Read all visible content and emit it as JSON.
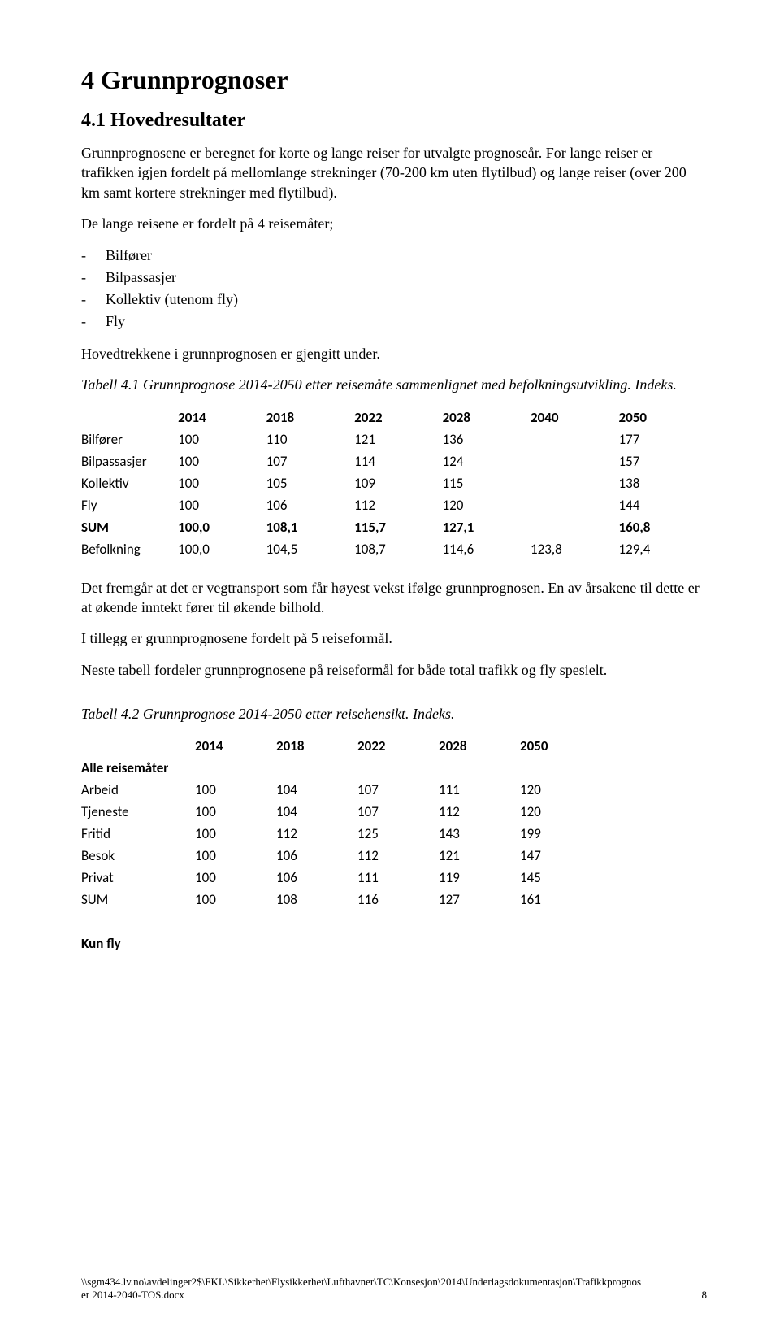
{
  "heading": "4  Grunnprognoser",
  "subheading": "4.1  Hovedresultater",
  "para1": "Grunnprognosene er beregnet for korte og lange reiser for utvalgte prognoseår. For lange reiser er trafikken igjen fordelt på mellomlange strekninger (70-200 km uten flytilbud) og lange reiser (over 200 km samt kortere strekninger med flytilbud).",
  "para2": "De lange reisene er fordelt på 4 reisemåter;",
  "list1": [
    "Bilfører",
    "Bilpassasjer",
    "Kollektiv (utenom fly)",
    "Fly"
  ],
  "para3": "Hovedtrekkene i grunnprognosen er gjengitt under.",
  "caption1": "Tabell 4.1 Grunnprognose 2014-2050 etter reisemåte sammenlignet med befolkningsutvikling. Indeks.",
  "table1": {
    "years": [
      "2014",
      "2018",
      "2022",
      "2028",
      "2040",
      "2050"
    ],
    "rows": [
      {
        "label": "Bilfører",
        "cells": [
          "100",
          "110",
          "121",
          "136",
          "",
          "177"
        ],
        "bold": false
      },
      {
        "label": "Bilpassasjer",
        "cells": [
          "100",
          "107",
          "114",
          "124",
          "",
          "157"
        ],
        "bold": false
      },
      {
        "label": "Kollektiv",
        "cells": [
          "100",
          "105",
          "109",
          "115",
          "",
          "138"
        ],
        "bold": false
      },
      {
        "label": "Fly",
        "cells": [
          "100",
          "106",
          "112",
          "120",
          "",
          "144"
        ],
        "bold": false
      },
      {
        "label": "SUM",
        "cells": [
          "100,0",
          "108,1",
          "115,7",
          "127,1",
          "",
          "160,8"
        ],
        "bold": true
      },
      {
        "label": "Befolkning",
        "cells": [
          "100,0",
          "104,5",
          "108,7",
          "114,6",
          "123,8",
          "129,4"
        ],
        "bold": false
      }
    ]
  },
  "para4": "Det fremgår at det er vegtransport som får høyest vekst ifølge grunnprognosen. En av årsakene til dette er at økende inntekt fører til økende bilhold.",
  "para5": "I tillegg er grunnprognosene fordelt på 5 reiseformål.",
  "para6": "Neste tabell fordeler grunnprognosene på reiseformål for både total trafikk og fly spesielt.",
  "caption2": "Tabell 4.2 Grunnprognose 2014-2050 etter reisehensikt. Indeks.",
  "table2": {
    "years": [
      "2014",
      "2018",
      "2022",
      "2028",
      "2050"
    ],
    "section_label": "Alle reisemåter",
    "rows": [
      {
        "label": "Arbeid",
        "cells": [
          "100",
          "104",
          "107",
          "111",
          "120"
        ]
      },
      {
        "label": "Tjeneste",
        "cells": [
          "100",
          "104",
          "107",
          "112",
          "120"
        ]
      },
      {
        "label": "Fritid",
        "cells": [
          "100",
          "112",
          "125",
          "143",
          "199"
        ]
      },
      {
        "label": "Besok",
        "cells": [
          "100",
          "106",
          "112",
          "121",
          "147"
        ]
      },
      {
        "label": "Privat",
        "cells": [
          "100",
          "106",
          "111",
          "119",
          "145"
        ]
      },
      {
        "label": "SUM",
        "cells": [
          "100",
          "108",
          "116",
          "127",
          "161"
        ]
      }
    ],
    "footer_label": "Kun fly"
  },
  "footer_path": "\\\\sgm434.lv.no\\avdelinger2$\\FKL\\Sikkerhet\\Flysikkerhet\\Lufthavner\\TC\\Konsesjon\\2014\\Underlagsdokumentasjon\\Trafikkprognos",
  "footer_file": "er 2014-2040-TOS.docx",
  "footer_page": "8"
}
